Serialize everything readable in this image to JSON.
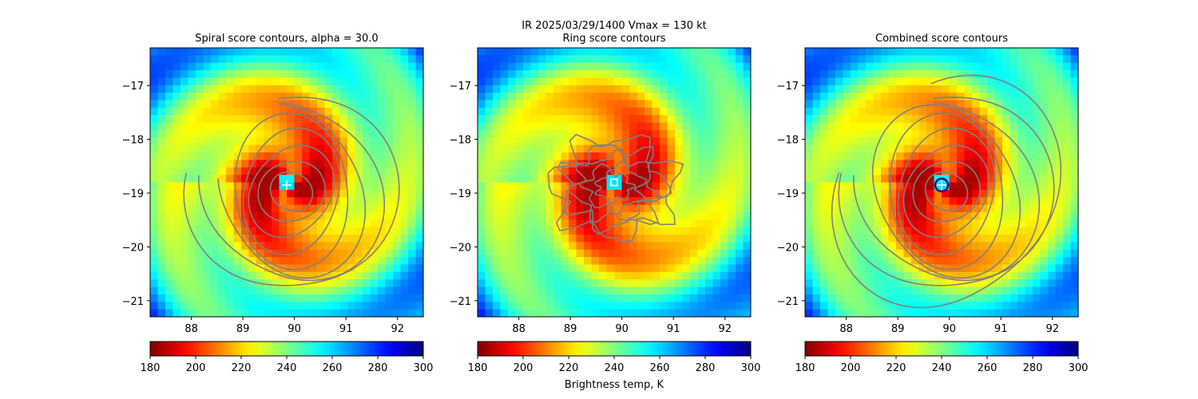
{
  "figure": {
    "suptitle_line1": "IR  2025/03/29/1400    Vmax = 130 kt",
    "colorbar_label": "Brightness temp, K"
  },
  "chart_data": [
    {
      "type": "heatmap",
      "title": "Spiral score contours, alpha = 30.0",
      "xlim": [
        87.2,
        92.5
      ],
      "ylim": [
        -21.3,
        -16.3
      ],
      "xticks": [
        88,
        89,
        90,
        91,
        92
      ],
      "yticks": [
        -17,
        -18,
        -19,
        -20,
        -21
      ],
      "xtick_labels": [
        "88",
        "89",
        "90",
        "91",
        "92"
      ],
      "ytick_labels": [
        "−17",
        "−18",
        "−19",
        "−20",
        "−21"
      ],
      "storm_center": {
        "lon": 89.85,
        "lat": -18.85
      },
      "marker": "plus",
      "contour_color": "#808080",
      "contour_levels": 8,
      "spiral_contours": true,
      "colormap": "jet_r",
      "clim": [
        180,
        300
      ]
    },
    {
      "type": "heatmap",
      "title": "Ring score contours",
      "xlim": [
        87.2,
        92.5
      ],
      "ylim": [
        -21.3,
        -16.3
      ],
      "xticks": [
        88,
        89,
        90,
        91,
        92
      ],
      "yticks": [
        -17,
        -18,
        -19,
        -20,
        -21
      ],
      "xtick_labels": [
        "88",
        "89",
        "90",
        "91",
        "92"
      ],
      "ytick_labels": [
        "−17",
        "−18",
        "−19",
        "−20",
        "−21"
      ],
      "storm_center": {
        "lon": 89.85,
        "lat": -18.8
      },
      "marker": "square",
      "contour_color": "#808080",
      "contour_levels": 5,
      "spiral_contours": false,
      "colormap": "jet_r",
      "clim": [
        180,
        300
      ]
    },
    {
      "type": "heatmap",
      "title": "Combined score contours",
      "xlim": [
        87.2,
        92.5
      ],
      "ylim": [
        -21.3,
        -16.3
      ],
      "xticks": [
        88,
        89,
        90,
        91,
        92
      ],
      "yticks": [
        -17,
        -18,
        -19,
        -20,
        -21
      ],
      "xtick_labels": [
        "88",
        "89",
        "90",
        "91",
        "92"
      ],
      "ytick_labels": [
        "−17",
        "−18",
        "−19",
        "−20",
        "−21"
      ],
      "storm_center": {
        "lon": 89.85,
        "lat": -18.85
      },
      "marker": "plus",
      "contour_color": "#808080",
      "contour_levels": 9,
      "spiral_contours": true,
      "colormap": "jet_r",
      "clim": [
        180,
        300
      ]
    }
  ],
  "colorbar": {
    "ticks": [
      180,
      200,
      220,
      240,
      260,
      280,
      300
    ],
    "tick_labels": [
      "180",
      "200",
      "220",
      "240",
      "260",
      "280",
      "300"
    ]
  }
}
